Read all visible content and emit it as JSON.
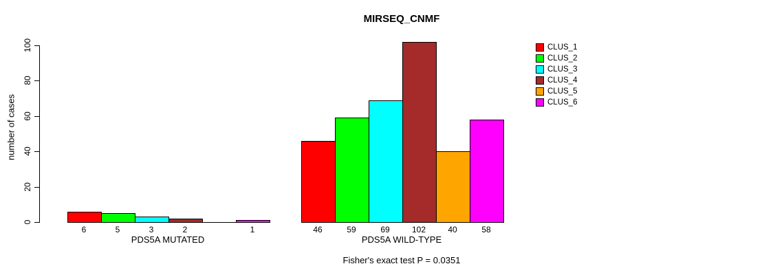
{
  "chart_data": {
    "type": "bar",
    "title": "MIRSEQ_CNMF",
    "ylabel": "number of cases",
    "xlabel": "",
    "subtitle": "Fisher's exact test P = 0.0351",
    "ylim": [
      0,
      100
    ],
    "yticks": [
      0,
      20,
      40,
      60,
      80,
      100
    ],
    "grid": false,
    "legend_position": "right",
    "legend": [
      {
        "label": "CLUS_1",
        "color": "#FF0000"
      },
      {
        "label": "CLUS_2",
        "color": "#00FF00"
      },
      {
        "label": "CLUS_3",
        "color": "#00FFFF"
      },
      {
        "label": "CLUS_4",
        "color": "#A52A2A"
      },
      {
        "label": "CLUS_5",
        "color": "#FFA500"
      },
      {
        "label": "CLUS_6",
        "color": "#FF00FF"
      }
    ],
    "groups": [
      {
        "label": "PDS5A MUTATED",
        "bars": [
          {
            "cluster": "CLUS_1",
            "value": 6,
            "label": "6",
            "color": "#FF0000"
          },
          {
            "cluster": "CLUS_2",
            "value": 5,
            "label": "5",
            "color": "#00FF00"
          },
          {
            "cluster": "CLUS_3",
            "value": 3,
            "label": "3",
            "color": "#00FFFF"
          },
          {
            "cluster": "CLUS_4",
            "value": 2,
            "label": "2",
            "color": "#A52A2A"
          },
          {
            "cluster": "CLUS_5",
            "value": 0,
            "label": "",
            "color": "#FFA500"
          },
          {
            "cluster": "CLUS_6",
            "value": 1,
            "label": "1",
            "color": "#FF00FF"
          }
        ]
      },
      {
        "label": "PDS5A WILD-TYPE",
        "bars": [
          {
            "cluster": "CLUS_1",
            "value": 46,
            "label": "46",
            "color": "#FF0000"
          },
          {
            "cluster": "CLUS_2",
            "value": 59,
            "label": "59",
            "color": "#00FF00"
          },
          {
            "cluster": "CLUS_3",
            "value": 69,
            "label": "69",
            "color": "#00FFFF"
          },
          {
            "cluster": "CLUS_4",
            "value": 102,
            "label": "102",
            "color": "#A52A2A"
          },
          {
            "cluster": "CLUS_5",
            "value": 40,
            "label": "40",
            "color": "#FFA500"
          },
          {
            "cluster": "CLUS_6",
            "value": 58,
            "label": "58",
            "color": "#FF00FF"
          }
        ]
      }
    ]
  }
}
